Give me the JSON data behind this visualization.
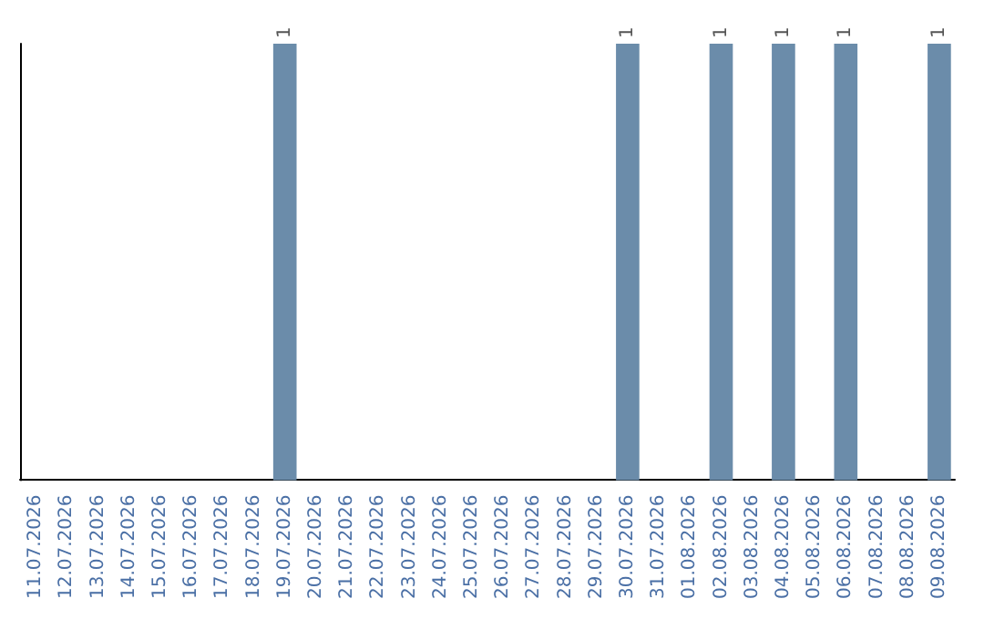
{
  "chart_data": {
    "type": "bar",
    "categories": [
      "11.07.2026",
      "12.07.2026",
      "13.07.2026",
      "14.07.2026",
      "15.07.2026",
      "16.07.2026",
      "17.07.2026",
      "18.07.2026",
      "19.07.2026",
      "20.07.2026",
      "21.07.2026",
      "22.07.2026",
      "23.07.2026",
      "24.07.2026",
      "25.07.2026",
      "26.07.2026",
      "27.07.2026",
      "28.07.2026",
      "29.07.2026",
      "30.07.2026",
      "31.07.2026",
      "01.08.2026",
      "02.08.2026",
      "03.08.2026",
      "04.08.2026",
      "05.08.2026",
      "06.08.2026",
      "07.08.2026",
      "08.08.2026",
      "09.08.2026"
    ],
    "values": [
      null,
      null,
      null,
      null,
      null,
      null,
      null,
      null,
      1,
      null,
      null,
      null,
      null,
      null,
      null,
      null,
      null,
      null,
      null,
      1,
      null,
      null,
      1,
      null,
      1,
      null,
      1,
      null,
      null,
      1
    ],
    "value_labels": [
      null,
      null,
      null,
      null,
      null,
      null,
      null,
      null,
      "1",
      null,
      null,
      null,
      null,
      null,
      null,
      null,
      null,
      null,
      null,
      "1",
      null,
      null,
      "1",
      null,
      "1",
      null,
      "1",
      null,
      null,
      "1"
    ],
    "color": "#6b8caa",
    "grid": false,
    "tick_labels": "x"
  }
}
